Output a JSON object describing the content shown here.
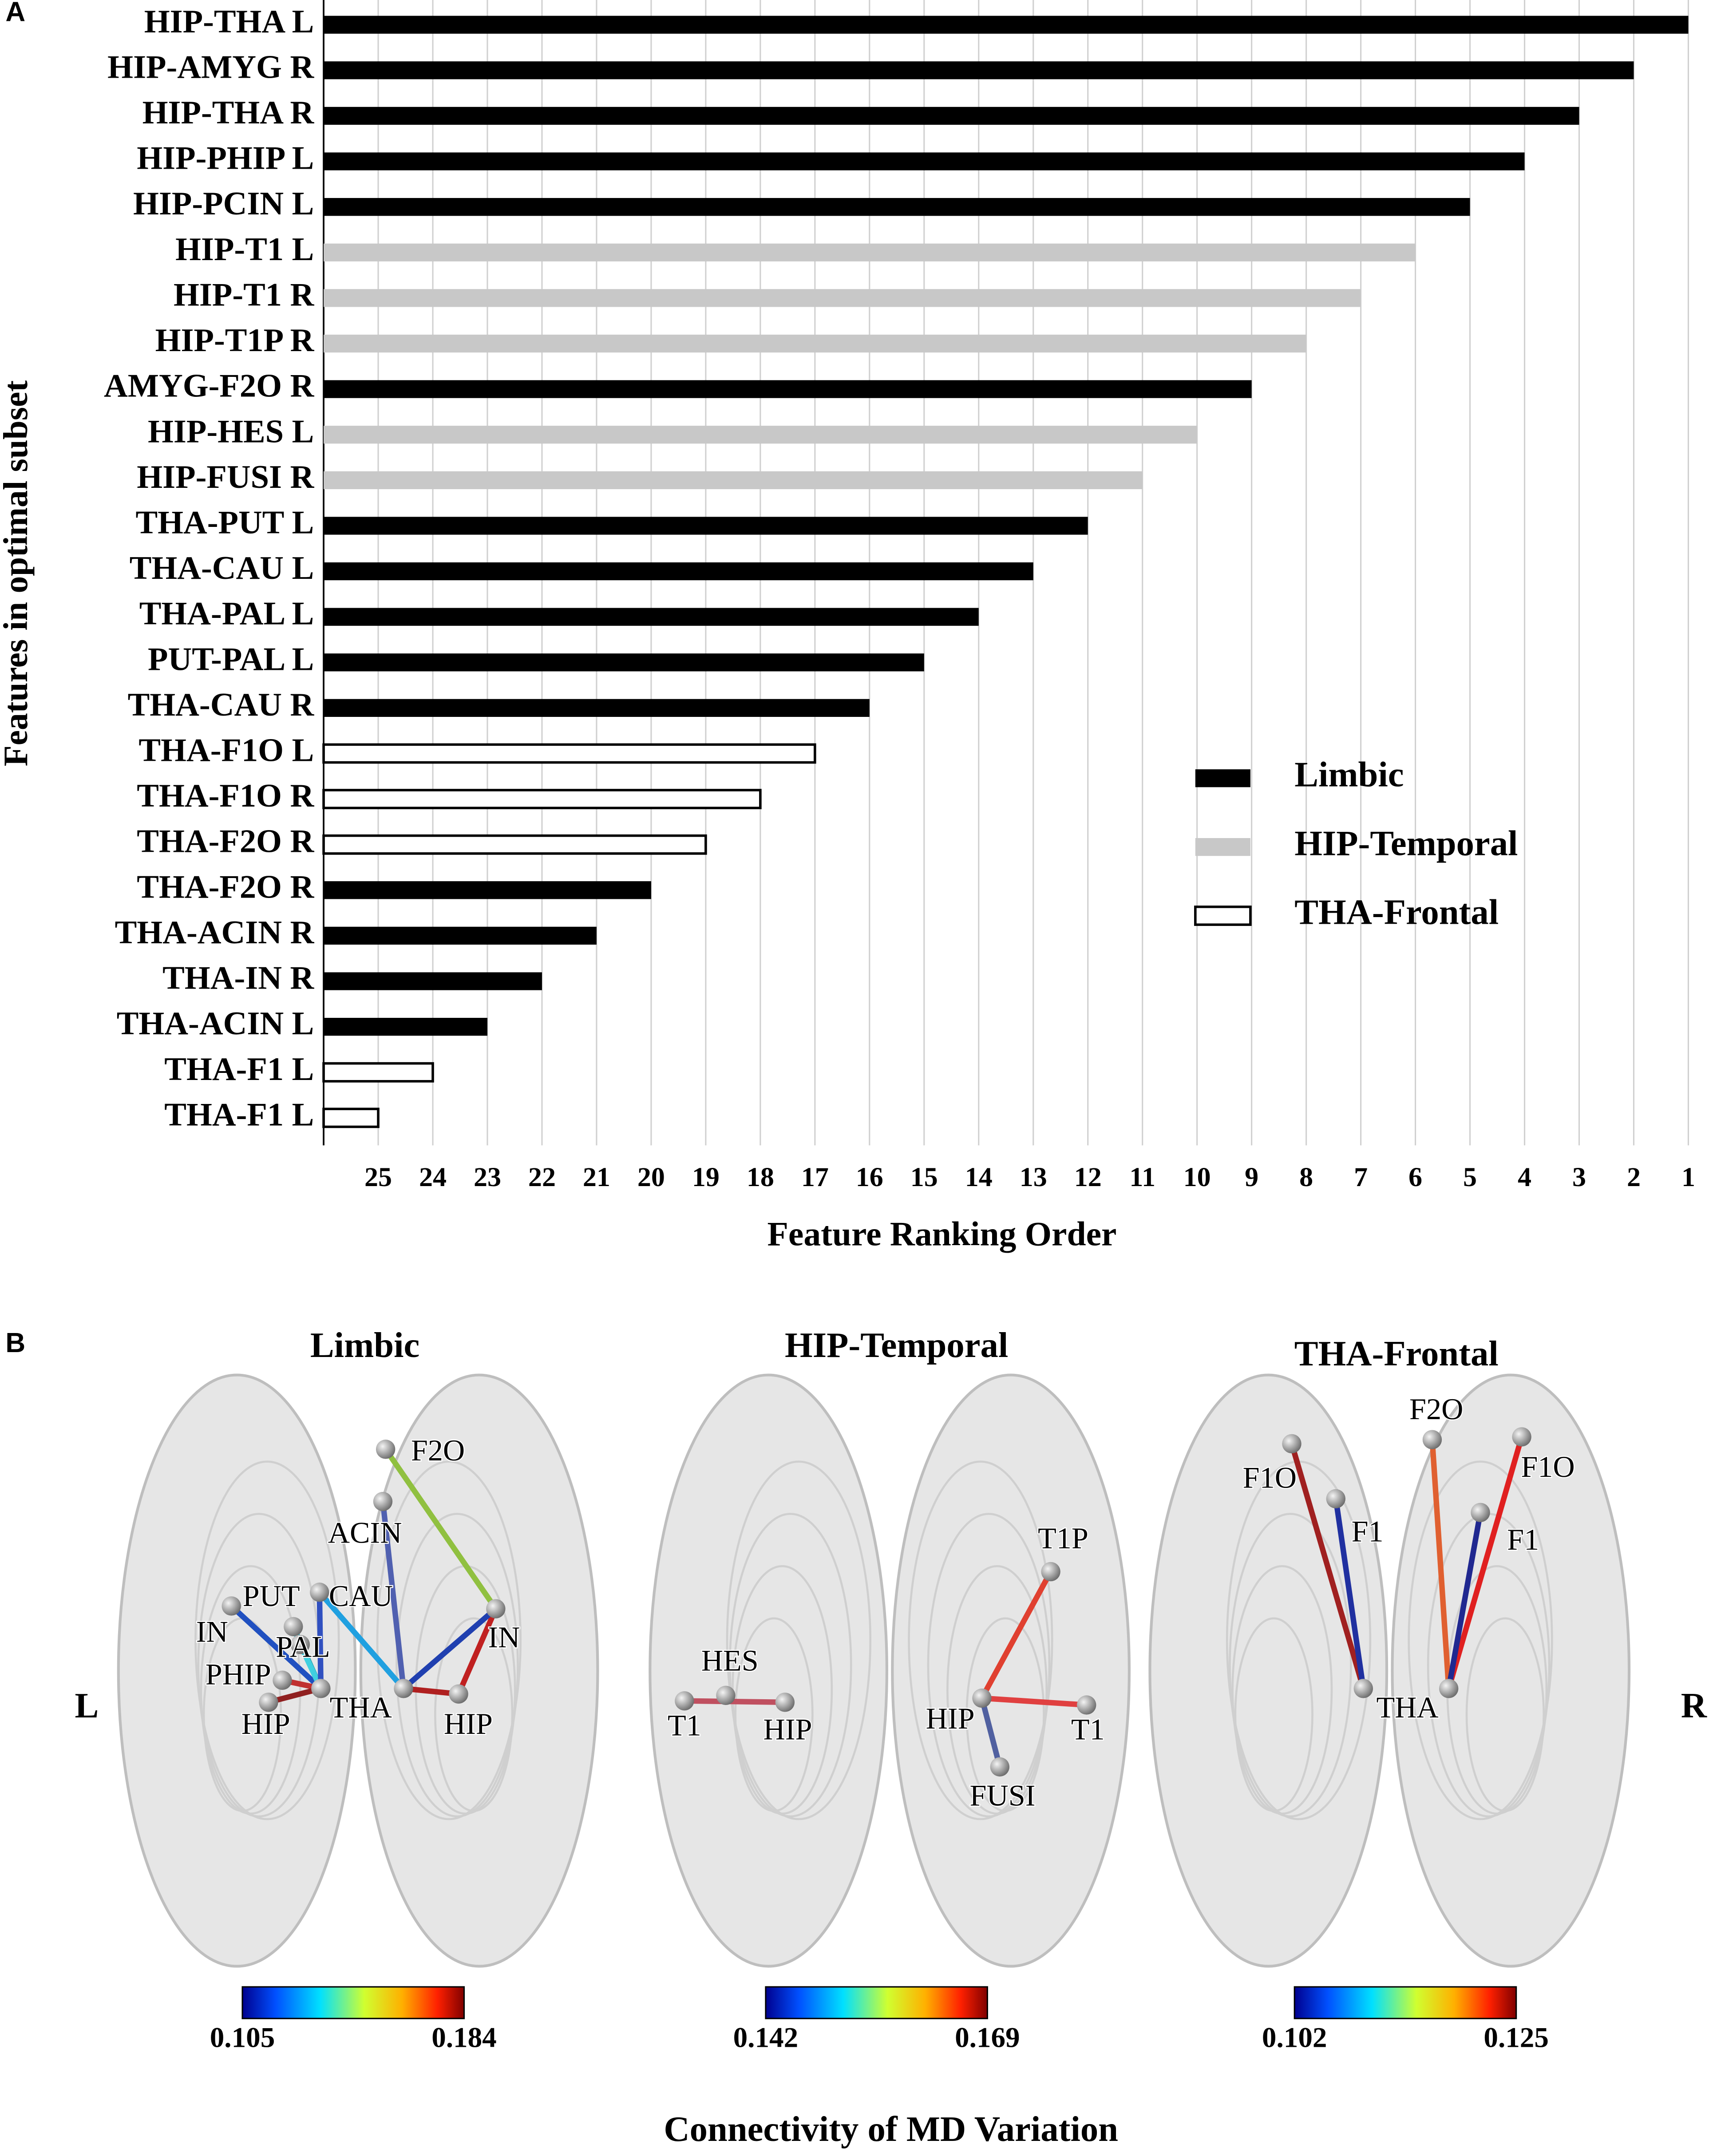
{
  "chart_data": {
    "type": "barh",
    "panel_label": "A",
    "xlabel": "Feature Ranking Order",
    "ylabel": "Features in optimal subset",
    "categories": [
      "HIP-THA L",
      "HIP-AMYG R",
      "HIP-THA R",
      "HIP-PHIP L",
      "HIP-PCIN L",
      "HIP-T1 L",
      "HIP-T1 R",
      "HIP-T1P R",
      "AMYG-F2O R",
      "HIP-HES L",
      "HIP-FUSI R",
      "THA-PUT L",
      "THA-CAU L",
      "THA-PAL L",
      "PUT-PAL L",
      "THA-CAU R",
      "THA-F1O L",
      "THA-F1O R",
      "THA-F2O R",
      "THA-F2O R",
      "THA-ACIN R",
      "THA-IN R",
      "THA-ACIN L",
      "THA-F1 L",
      "THA-F1 L"
    ],
    "series": [
      {
        "name": "Limbic",
        "color": "#000000",
        "values": [
          1,
          2,
          3,
          4,
          5,
          null,
          null,
          null,
          9,
          null,
          null,
          12,
          13,
          14,
          15,
          16,
          null,
          null,
          null,
          20,
          21,
          22,
          23,
          null,
          null
        ]
      },
      {
        "name": "HIP-Temporal",
        "color": "#c8c8c8",
        "values": [
          null,
          null,
          null,
          null,
          null,
          6,
          7,
          8,
          null,
          10,
          11,
          null,
          null,
          null,
          null,
          null,
          null,
          null,
          null,
          null,
          null,
          null,
          null,
          null,
          null
        ]
      },
      {
        "name": "THA-Frontal",
        "color": "#ffffff",
        "edgecolor": "#000000",
        "values": [
          null,
          null,
          null,
          null,
          null,
          null,
          null,
          null,
          null,
          null,
          null,
          null,
          null,
          null,
          null,
          null,
          17,
          18,
          19,
          null,
          null,
          null,
          null,
          24,
          25
        ]
      }
    ],
    "xlim": [
      26,
      1
    ],
    "xticks": [
      25,
      24,
      23,
      22,
      21,
      20,
      19,
      18,
      17,
      16,
      15,
      14,
      13,
      12,
      11,
      10,
      9,
      8,
      7,
      6,
      5,
      4,
      3,
      2,
      1
    ],
    "grid": true,
    "legend": "right"
  },
  "panel_b": {
    "panel_label": "B",
    "caption": "Connectivity of MD Variation",
    "side_labels": [
      "L",
      "R"
    ],
    "panels": [
      {
        "title": "Limbic",
        "node_labels": [
          "F2O",
          "ACIN",
          "PUT",
          "CAU",
          "IN",
          "PAL",
          "PHIP",
          "HIP",
          "THA",
          "IN",
          "HIP"
        ],
        "colorbar": [
          0.105,
          0.184
        ]
      },
      {
        "title": "HIP-Temporal",
        "node_labels": [
          "HES",
          "T1",
          "HIP",
          "T1P",
          "HIP",
          "T1",
          "FUSI"
        ],
        "colorbar": [
          0.142,
          0.169
        ]
      },
      {
        "title": "THA-Frontal",
        "node_labels": [
          "F2O",
          "F1O",
          "F1",
          "F1O",
          "F1",
          "THA"
        ],
        "colorbar": [
          0.102,
          0.125
        ]
      }
    ]
  }
}
